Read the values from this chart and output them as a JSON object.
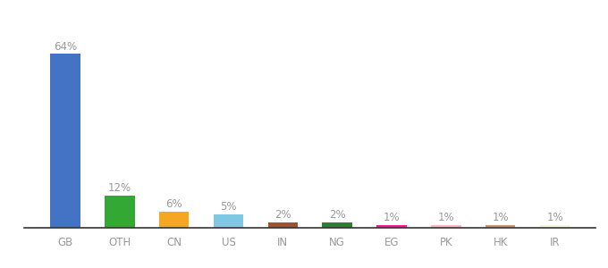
{
  "categories": [
    "GB",
    "OTH",
    "CN",
    "US",
    "IN",
    "NG",
    "EG",
    "PK",
    "HK",
    "IR"
  ],
  "values": [
    64,
    12,
    6,
    5,
    2,
    2,
    1,
    1,
    1,
    1
  ],
  "labels": [
    "64%",
    "12%",
    "6%",
    "5%",
    "2%",
    "2%",
    "1%",
    "1%",
    "1%",
    "1%"
  ],
  "bar_colors": [
    "#4472C4",
    "#33A832",
    "#F5A623",
    "#7EC8E3",
    "#A0522D",
    "#2E7D32",
    "#FF1493",
    "#FFB6C1",
    "#C4956A",
    "#F5F5DC"
  ],
  "ylim": [
    0,
    72
  ],
  "background_color": "#ffffff",
  "label_color": "#999999",
  "label_fontsize": 8.5,
  "tick_fontsize": 8.5,
  "bar_width": 0.55
}
